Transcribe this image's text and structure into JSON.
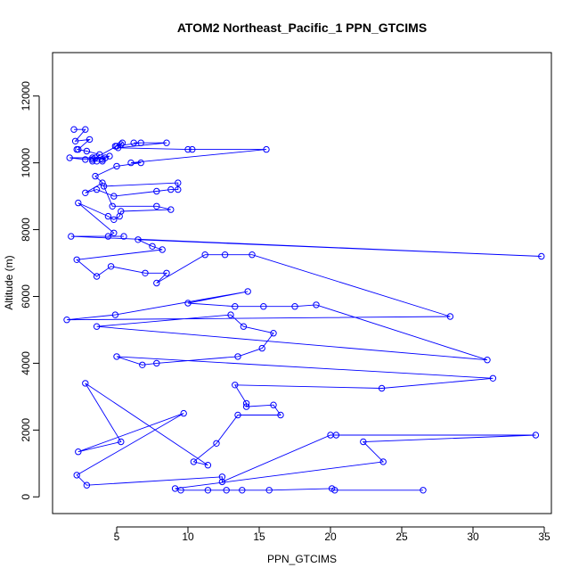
{
  "chart_data": {
    "type": "line",
    "title": "ATOM2 Northeast_Pacific_1 PPN_GTCIMS",
    "xlabel": "PPN_GTCIMS",
    "ylabel": "Altitude (m)",
    "xlim": [
      0.5,
      35.5
    ],
    "ylim": [
      -500,
      13300
    ],
    "x_ticks": [
      5,
      10,
      15,
      20,
      25,
      30,
      35
    ],
    "y_ticks": [
      0,
      2000,
      4000,
      6000,
      8000,
      10000,
      12000
    ],
    "grid": false,
    "legend": "none",
    "colors": {
      "series": "#0000ff",
      "frame": "#000000",
      "background": "#ffffff"
    },
    "series": [
      {
        "marker": "open-circle",
        "points": [
          {
            "x": 2.0,
            "y": 11000
          },
          {
            "x": 2.8,
            "y": 11000
          },
          {
            "x": 2.1,
            "y": 10650
          },
          {
            "x": 3.1,
            "y": 10700
          },
          {
            "x": 2.3,
            "y": 10400
          },
          {
            "x": 2.2,
            "y": 10400
          },
          {
            "x": 2.9,
            "y": 10350
          },
          {
            "x": 3.8,
            "y": 10250
          },
          {
            "x": 3.3,
            "y": 10050
          },
          {
            "x": 3.5,
            "y": 10150
          },
          {
            "x": 4.0,
            "y": 10100
          },
          {
            "x": 4.5,
            "y": 10200
          },
          {
            "x": 2.8,
            "y": 10100
          },
          {
            "x": 1.7,
            "y": 10150
          },
          {
            "x": 3.3,
            "y": 10150
          },
          {
            "x": 3.6,
            "y": 10050
          },
          {
            "x": 4.0,
            "y": 10050
          },
          {
            "x": 4.2,
            "y": 10150
          },
          {
            "x": 3.3,
            "y": 10100
          },
          {
            "x": 5.0,
            "y": 10500
          },
          {
            "x": 5.3,
            "y": 10550
          },
          {
            "x": 5.4,
            "y": 10600
          },
          {
            "x": 4.9,
            "y": 10500
          },
          {
            "x": 6.7,
            "y": 10600
          },
          {
            "x": 6.2,
            "y": 10600
          },
          {
            "x": 8.5,
            "y": 10600
          },
          {
            "x": 5.1,
            "y": 10450
          },
          {
            "x": 10.0,
            "y": 10400
          },
          {
            "x": 10.3,
            "y": 10400
          },
          {
            "x": 15.5,
            "y": 10400
          },
          {
            "x": 6.0,
            "y": 10000
          },
          {
            "x": 6.7,
            "y": 10000
          },
          {
            "x": 5.0,
            "y": 9900
          },
          {
            "x": 3.5,
            "y": 9600
          },
          {
            "x": 4.0,
            "y": 9400
          },
          {
            "x": 2.8,
            "y": 9100
          },
          {
            "x": 3.6,
            "y": 9200
          },
          {
            "x": 4.8,
            "y": 9000
          },
          {
            "x": 7.8,
            "y": 9150
          },
          {
            "x": 8.8,
            "y": 9200
          },
          {
            "x": 9.3,
            "y": 9200
          },
          {
            "x": 9.3,
            "y": 9400
          },
          {
            "x": 4.1,
            "y": 9300
          },
          {
            "x": 4.7,
            "y": 8700
          },
          {
            "x": 7.8,
            "y": 8700
          },
          {
            "x": 8.8,
            "y": 8600
          },
          {
            "x": 5.3,
            "y": 8550
          },
          {
            "x": 5.2,
            "y": 8400
          },
          {
            "x": 4.8,
            "y": 8300
          },
          {
            "x": 4.4,
            "y": 8400
          },
          {
            "x": 2.3,
            "y": 8800
          },
          {
            "x": 4.8,
            "y": 7900
          },
          {
            "x": 4.4,
            "y": 7800
          },
          {
            "x": 5.5,
            "y": 7800
          },
          {
            "x": 1.8,
            "y": 7800
          },
          {
            "x": 34.8,
            "y": 7200
          },
          {
            "x": 6.5,
            "y": 7700
          },
          {
            "x": 7.5,
            "y": 7500
          },
          {
            "x": 8.2,
            "y": 7400
          },
          {
            "x": 2.2,
            "y": 7100
          },
          {
            "x": 3.6,
            "y": 6600
          },
          {
            "x": 4.6,
            "y": 6900
          },
          {
            "x": 7.0,
            "y": 6700
          },
          {
            "x": 8.5,
            "y": 6700
          },
          {
            "x": 7.8,
            "y": 6400
          },
          {
            "x": 11.2,
            "y": 7250
          },
          {
            "x": 12.6,
            "y": 7250
          },
          {
            "x": 14.5,
            "y": 7250
          },
          {
            "x": 28.4,
            "y": 5400
          },
          {
            "x": 1.5,
            "y": 5300
          },
          {
            "x": 4.9,
            "y": 5450
          },
          {
            "x": 14.2,
            "y": 6150
          },
          {
            "x": 10.0,
            "y": 5800
          },
          {
            "x": 13.3,
            "y": 5700
          },
          {
            "x": 15.3,
            "y": 5700
          },
          {
            "x": 17.5,
            "y": 5700
          },
          {
            "x": 19.0,
            "y": 5750
          },
          {
            "x": 31.0,
            "y": 4100
          },
          {
            "x": 3.6,
            "y": 5100
          },
          {
            "x": 13.0,
            "y": 5450
          },
          {
            "x": 13.9,
            "y": 5100
          },
          {
            "x": 16.0,
            "y": 4900
          },
          {
            "x": 15.2,
            "y": 4450
          },
          {
            "x": 13.5,
            "y": 4200
          },
          {
            "x": 7.8,
            "y": 4000
          },
          {
            "x": 6.8,
            "y": 3950
          },
          {
            "x": 5.0,
            "y": 4200
          },
          {
            "x": 31.4,
            "y": 3550
          },
          {
            "x": 23.6,
            "y": 3250
          },
          {
            "x": 13.3,
            "y": 3350
          },
          {
            "x": 14.1,
            "y": 2800
          },
          {
            "x": 14.1,
            "y": 2700
          },
          {
            "x": 16.0,
            "y": 2750
          },
          {
            "x": 16.5,
            "y": 2450
          },
          {
            "x": 13.5,
            "y": 2450
          },
          {
            "x": 12.0,
            "y": 1600
          },
          {
            "x": 10.4,
            "y": 1050
          },
          {
            "x": 11.4,
            "y": 950
          },
          {
            "x": 2.8,
            "y": 3400
          },
          {
            "x": 5.3,
            "y": 1650
          },
          {
            "x": 2.3,
            "y": 1350
          },
          {
            "x": 9.7,
            "y": 2500
          },
          {
            "x": 2.2,
            "y": 650
          },
          {
            "x": 2.9,
            "y": 350
          },
          {
            "x": 12.4,
            "y": 600
          },
          {
            "x": 12.4,
            "y": 450
          },
          {
            "x": 20.0,
            "y": 1850
          },
          {
            "x": 20.4,
            "y": 1850
          },
          {
            "x": 34.4,
            "y": 1850
          },
          {
            "x": 22.3,
            "y": 1650
          },
          {
            "x": 23.7,
            "y": 1050
          },
          {
            "x": 9.1,
            "y": 250
          },
          {
            "x": 9.5,
            "y": 200
          },
          {
            "x": 11.4,
            "y": 200
          },
          {
            "x": 12.7,
            "y": 200
          },
          {
            "x": 13.8,
            "y": 200
          },
          {
            "x": 15.7,
            "y": 200
          },
          {
            "x": 20.1,
            "y": 250
          },
          {
            "x": 20.3,
            "y": 200
          },
          {
            "x": 26.5,
            "y": 200
          }
        ]
      }
    ]
  }
}
